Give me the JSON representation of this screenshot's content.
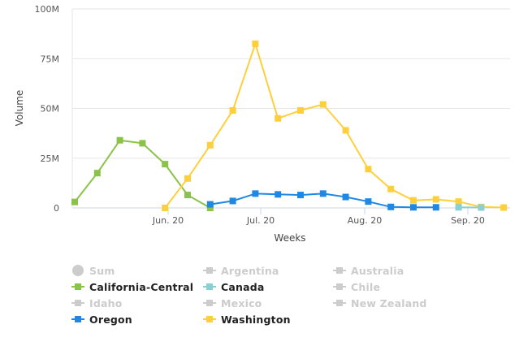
{
  "chart_data": {
    "type": "line",
    "title": "",
    "xlabel": "Weeks",
    "ylabel": "Volume",
    "ylim": [
      0,
      100000000
    ],
    "y_ticks": [
      {
        "value": 0,
        "label": "0"
      },
      {
        "value": 25000000,
        "label": "25M"
      },
      {
        "value": 50000000,
        "label": "50M"
      },
      {
        "value": 75000000,
        "label": "75M"
      },
      {
        "value": 100000000,
        "label": "100M"
      }
    ],
    "x_tick_labels": [
      "Jun. 20",
      "Jul. 20",
      "Aug. 20",
      "Sep. 20"
    ],
    "grid": "horizontal",
    "legend_position": "bottom",
    "series": [
      {
        "name": "California-Central",
        "color": "#8bc34a",
        "points": [
          {
            "x": 0,
            "y": 3000000
          },
          {
            "x": 1,
            "y": 17500000
          },
          {
            "x": 2,
            "y": 34000000
          },
          {
            "x": 3,
            "y": 32500000
          },
          {
            "x": 4,
            "y": 22000000
          },
          {
            "x": 5,
            "y": 6500000
          },
          {
            "x": 6,
            "y": 0
          }
        ]
      },
      {
        "name": "Washington",
        "color": "#fdd03b",
        "points": [
          {
            "x": 4,
            "y": 0
          },
          {
            "x": 5,
            "y": 14800000
          },
          {
            "x": 6,
            "y": 31500000
          },
          {
            "x": 7,
            "y": 49000000
          },
          {
            "x": 8,
            "y": 82500000
          },
          {
            "x": 9,
            "y": 45000000
          },
          {
            "x": 10,
            "y": 49000000
          },
          {
            "x": 11,
            "y": 52000000
          },
          {
            "x": 12,
            "y": 39000000
          },
          {
            "x": 13,
            "y": 19500000
          },
          {
            "x": 14,
            "y": 9500000
          },
          {
            "x": 15,
            "y": 3800000
          },
          {
            "x": 16,
            "y": 4300000
          },
          {
            "x": 17,
            "y": 3200000
          },
          {
            "x": 18,
            "y": 500000
          },
          {
            "x": 19,
            "y": 200000
          }
        ]
      },
      {
        "name": "Canada",
        "color": "#88d0d1",
        "points": [
          {
            "x": 17,
            "y": 300000
          },
          {
            "x": 18,
            "y": 200000
          }
        ]
      },
      {
        "name": "Oregon",
        "color": "#1e88e5",
        "points": [
          {
            "x": 6,
            "y": 1800000
          },
          {
            "x": 7,
            "y": 3500000
          },
          {
            "x": 8,
            "y": 7200000
          },
          {
            "x": 9,
            "y": 6800000
          },
          {
            "x": 10,
            "y": 6500000
          },
          {
            "x": 11,
            "y": 7200000
          },
          {
            "x": 12,
            "y": 5500000
          },
          {
            "x": 13,
            "y": 3200000
          },
          {
            "x": 14,
            "y": 500000
          },
          {
            "x": 15,
            "y": 300000
          },
          {
            "x": 16,
            "y": 300000
          }
        ]
      }
    ]
  },
  "legend": {
    "items": [
      {
        "label": "Sum",
        "shape": "circle",
        "color": "#cccccc",
        "visible": false
      },
      {
        "label": "Argentina",
        "shape": "square",
        "color": "#cccccc",
        "visible": false
      },
      {
        "label": "Australia",
        "shape": "square",
        "color": "#cccccc",
        "visible": false
      },
      {
        "label": "California-Central",
        "shape": "square",
        "color": "#8bc34a",
        "visible": true
      },
      {
        "label": "Canada",
        "shape": "square",
        "color": "#88d0d1",
        "visible": true
      },
      {
        "label": "Chile",
        "shape": "square",
        "color": "#cccccc",
        "visible": false
      },
      {
        "label": "Idaho",
        "shape": "square",
        "color": "#cccccc",
        "visible": false
      },
      {
        "label": "Mexico",
        "shape": "square",
        "color": "#cccccc",
        "visible": false
      },
      {
        "label": "New Zealand",
        "shape": "square",
        "color": "#cccccc",
        "visible": false
      },
      {
        "label": "Oregon",
        "shape": "square",
        "color": "#1e88e5",
        "visible": true
      },
      {
        "label": "Washington",
        "shape": "square",
        "color": "#fdd03b",
        "visible": true
      }
    ]
  }
}
